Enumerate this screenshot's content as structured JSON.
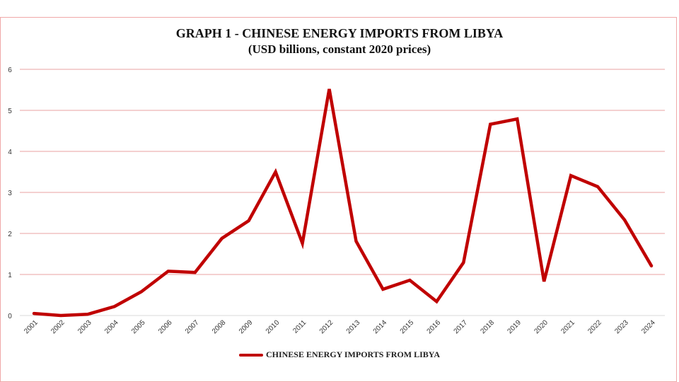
{
  "chart_data": {
    "type": "line",
    "title": "GRAPH 1 - CHINESE ENERGY IMPORTS FROM LIBYA",
    "subtitle": "(USD billions, constant 2020 prices)",
    "xlabel": "",
    "ylabel": "",
    "ylim": [
      0,
      6
    ],
    "yticks": [
      "0",
      "1",
      "2",
      "3",
      "4",
      "5",
      "6"
    ],
    "grid": true,
    "legend_position": "bottom",
    "categories": [
      "2001",
      "2002",
      "2003",
      "2004",
      "2005",
      "2006",
      "2007",
      "2008",
      "2009",
      "2010",
      "2011",
      "2012",
      "2013",
      "2014",
      "2015",
      "2016",
      "2017",
      "2018",
      "2019",
      "2020",
      "2021",
      "2022",
      "2023",
      "2024"
    ],
    "series": [
      {
        "name": "CHINESE ENERGY IMPORTS FROM LIBYA",
        "color": "#c00000",
        "values": [
          0.05,
          0.0,
          0.03,
          0.22,
          0.58,
          1.08,
          1.05,
          1.88,
          2.31,
          3.5,
          1.76,
          5.52,
          1.81,
          0.64,
          0.86,
          0.34,
          1.29,
          4.66,
          4.79,
          0.83,
          3.41,
          3.14,
          2.33,
          1.21
        ]
      }
    ]
  }
}
